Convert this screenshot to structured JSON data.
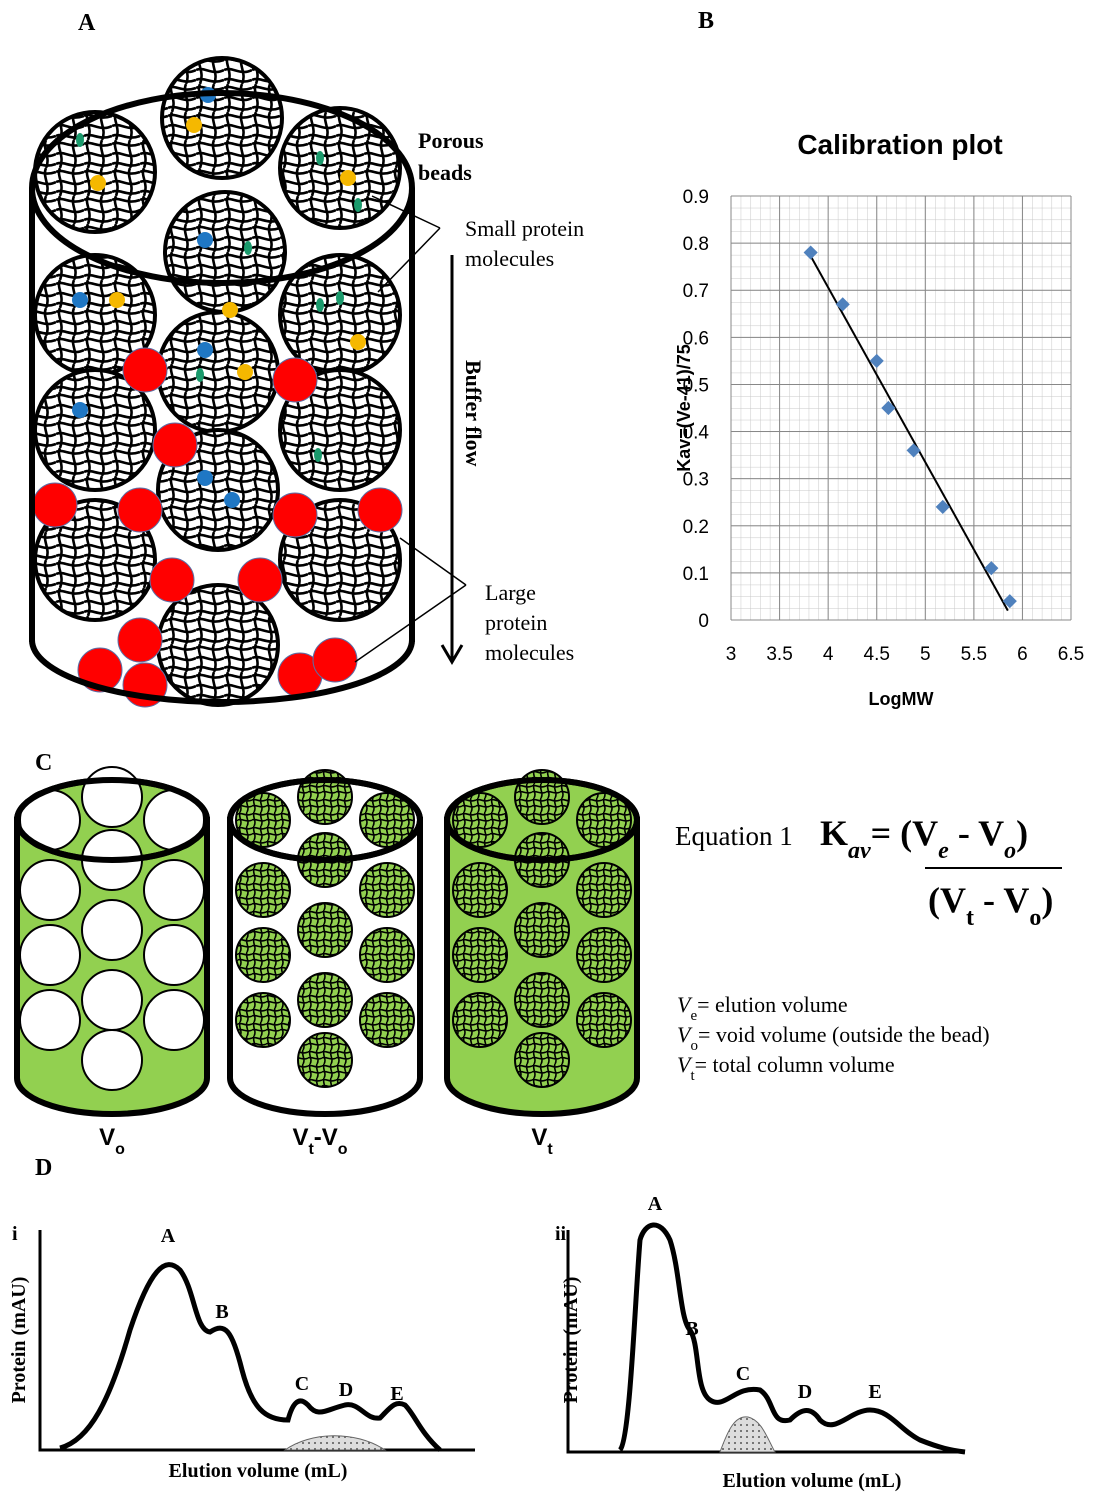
{
  "panel_a": {
    "label": "A",
    "porous_beads": [
      "Porous",
      "beads"
    ],
    "small_protein": [
      "Small protein",
      "molecules"
    ],
    "buffer_flow": "Buffer flow",
    "large_protein": [
      "Large",
      "protein",
      "molecules"
    ]
  },
  "chart_data": {
    "type": "scatter",
    "panel_label": "B",
    "title": "Calibration plot",
    "x_label": "LogMW",
    "y_label": "Kav=(Ve-41)/75",
    "x": [
      3.82,
      4.15,
      4.5,
      4.62,
      4.88,
      5.18,
      5.68,
      5.87
    ],
    "values": [
      0.78,
      0.67,
      0.55,
      0.45,
      0.36,
      0.24,
      0.11,
      0.04
    ],
    "color": "#4f81bd",
    "trendline": {
      "x": [
        3.8,
        5.85
      ],
      "y": [
        0.78,
        0.02
      ],
      "color": "#000000"
    },
    "xlim": [
      3,
      6.5
    ],
    "xticks": [
      3,
      3.5,
      4,
      4.5,
      5,
      5.5,
      6,
      6.5
    ],
    "ylim": [
      0,
      0.9
    ],
    "yticks": [
      0,
      0.1,
      0.2,
      0.3,
      0.4,
      0.5,
      0.6,
      0.7,
      0.8,
      0.9
    ],
    "grid": true
  },
  "panel_c": {
    "label": "C",
    "columns": [
      [
        "V",
        "o"
      ],
      [
        "V",
        "t",
        "-V",
        "o"
      ],
      [
        "V",
        "t"
      ]
    ],
    "equation": {
      "label": "Equation 1",
      "numerator": [
        "K",
        "av",
        "= (V",
        "e",
        " - V",
        "o",
        ")"
      ],
      "denominator": [
        "(V",
        "t",
        " - V",
        "o",
        ")"
      ]
    },
    "definitions": [
      [
        "V",
        "e",
        "= elution volume"
      ],
      [
        "V",
        "o",
        "= void volume (outside the bead)"
      ],
      [
        "V",
        "t",
        "= total column volume"
      ]
    ]
  },
  "panel_d": {
    "label": "D",
    "plots": [
      {
        "label": "i",
        "y_label": "Protein (mAU)",
        "x_label": "Elution volume (mL)",
        "peaks": [
          "A",
          "B",
          "C",
          "D",
          "E"
        ]
      },
      {
        "label": "ii",
        "y_label": "Protein (mAU)",
        "x_label": "Elution volume (mL)",
        "peaks": [
          "A",
          "B",
          "C",
          "D",
          "E"
        ]
      }
    ]
  }
}
